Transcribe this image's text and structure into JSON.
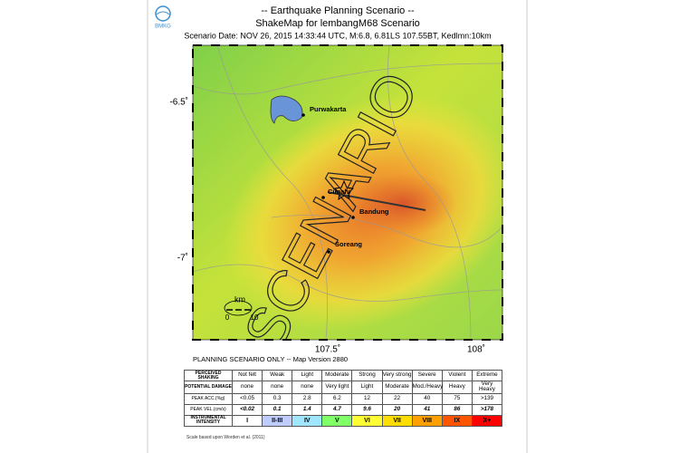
{
  "header": {
    "logo": "BMKG",
    "title": "-- Earthquake Planning Scenario --",
    "subtitle": "ShakeMap for lembangM68 Scenario",
    "scenario": "Scenario Date: NOV 26, 2015 14:33:44 UTC, M:6.8, 6.81LS 107.55BT, Kedlmn:10km"
  },
  "map": {
    "lat_ticks": [
      "-6.5˚",
      "-7˚"
    ],
    "lon_ticks": [
      "107.5˚",
      "108˚"
    ],
    "places": [
      "Purwakarta",
      "Cimahi",
      "Bandung",
      "Soreang"
    ],
    "watermark": "SCENARIO",
    "scale": {
      "unit": "km",
      "start": "0",
      "end": "10"
    }
  },
  "note": "PLANNING SCENARIO ONLY -- Map Version 2880",
  "table": {
    "rows": [
      [
        "PERCEIVED SHAKING",
        "Not felt",
        "Weak",
        "Light",
        "Moderate",
        "Strong",
        "Very strong",
        "Severe",
        "Violent",
        "Extreme"
      ],
      [
        "POTENTIAL DAMAGE",
        "none",
        "none",
        "none",
        "Very light",
        "Light",
        "Moderate",
        "Mod./Heavy",
        "Heavy",
        "Very Heavy"
      ],
      [
        "PEAK ACC.(%g)",
        "<0.05",
        "0.3",
        "2.8",
        "6.2",
        "12",
        "22",
        "40",
        "75",
        ">139"
      ],
      [
        "PEAK VEL.(cm/s)",
        "<0.02",
        "0.1",
        "1.4",
        "4.7",
        "9.6",
        "20",
        "41",
        "86",
        ">178"
      ],
      [
        "INSTRUMENTAL INTENSITY",
        "I",
        "II-III",
        "IV",
        "V",
        "VI",
        "VII",
        "VIII",
        "IX",
        "X+"
      ]
    ]
  },
  "footer": "Scale based upon Worden et al. (2011)"
}
